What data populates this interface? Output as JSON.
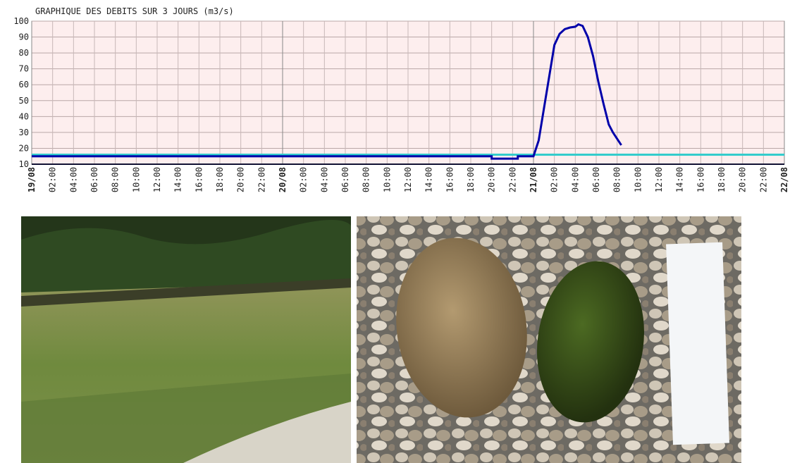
{
  "chart_data": {
    "type": "line",
    "title": "GRAPHIQUE DES DEBITS SUR 3 JOURS (m3/s)",
    "xlim": [
      0,
      72
    ],
    "xticks": [
      {
        "value": 0,
        "label": "19/08"
      },
      {
        "value": 2,
        "label": "02:00"
      },
      {
        "value": 4,
        "label": "04:00"
      },
      {
        "value": 6,
        "label": "06:00"
      },
      {
        "value": 8,
        "label": "08:00"
      },
      {
        "value": 10,
        "label": "10:00"
      },
      {
        "value": 12,
        "label": "12:00"
      },
      {
        "value": 14,
        "label": "14:00"
      },
      {
        "value": 16,
        "label": "16:00"
      },
      {
        "value": 18,
        "label": "18:00"
      },
      {
        "value": 20,
        "label": "20:00"
      },
      {
        "value": 22,
        "label": "22:00"
      },
      {
        "value": 24,
        "label": "20/08"
      },
      {
        "value": 26,
        "label": "02:00"
      },
      {
        "value": 28,
        "label": "04:00"
      },
      {
        "value": 30,
        "label": "06:00"
      },
      {
        "value": 32,
        "label": "08:00"
      },
      {
        "value": 34,
        "label": "10:00"
      },
      {
        "value": 36,
        "label": "12:00"
      },
      {
        "value": 38,
        "label": "14:00"
      },
      {
        "value": 40,
        "label": "16:00"
      },
      {
        "value": 42,
        "label": "18:00"
      },
      {
        "value": 44,
        "label": "20:00"
      },
      {
        "value": 46,
        "label": "22:00"
      },
      {
        "value": 48,
        "label": "21/08"
      },
      {
        "value": 50,
        "label": "02:00"
      },
      {
        "value": 52,
        "label": "04:00"
      },
      {
        "value": 54,
        "label": "06:00"
      },
      {
        "value": 56,
        "label": "08:00"
      },
      {
        "value": 58,
        "label": "10:00"
      },
      {
        "value": 60,
        "label": "12:00"
      },
      {
        "value": 62,
        "label": "14:00"
      },
      {
        "value": 64,
        "label": "16:00"
      },
      {
        "value": 66,
        "label": "18:00"
      },
      {
        "value": 68,
        "label": "20:00"
      },
      {
        "value": 70,
        "label": "22:00"
      },
      {
        "value": 72,
        "label": "22/08"
      }
    ],
    "ylim": [
      10,
      100
    ],
    "yticks": [
      10,
      20,
      30,
      40,
      50,
      60,
      70,
      80,
      90,
      100
    ],
    "grid": true,
    "series": [
      {
        "color": "#33cccc",
        "x": [
          0,
          72
        ],
        "values": [
          16,
          16
        ]
      },
      {
        "color": "#0000aa",
        "x": [
          0,
          44,
          44,
          46.5,
          46.5,
          48,
          48.5,
          49,
          49.5,
          50,
          50.5,
          51,
          51.5,
          52,
          52.3,
          52.7,
          53.2,
          53.7,
          54.2,
          54.7,
          55.2,
          55.6,
          56,
          56.4
        ],
        "values": [
          15,
          15,
          13.5,
          13.5,
          15,
          15,
          25,
          45,
          65,
          85,
          92,
          95,
          96,
          96.5,
          98,
          97,
          90,
          78,
          62,
          48,
          35,
          30,
          26,
          22
        ]
      }
    ]
  }
}
